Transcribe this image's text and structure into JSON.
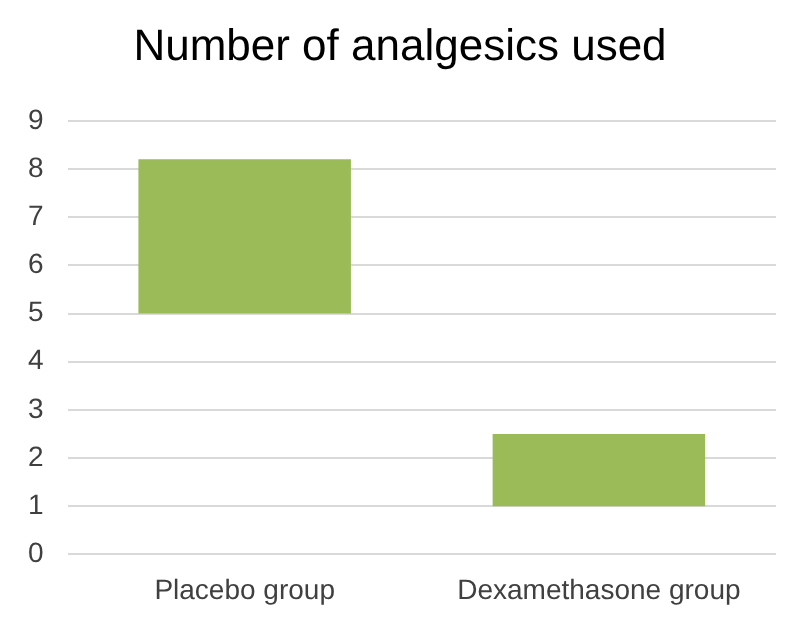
{
  "chart_data": {
    "type": "bar",
    "title": "Number of analgesics used",
    "categories": [
      "Placebo group",
      "Dexamethasone group"
    ],
    "values": [
      3.2,
      1.5
    ],
    "base": [
      5,
      1
    ],
    "color": "#9bbb59",
    "ylim": [
      0,
      9
    ],
    "yticks": [
      0,
      1,
      2,
      3,
      4,
      5,
      6,
      7,
      8,
      9
    ],
    "grid": "y",
    "legend": false
  }
}
